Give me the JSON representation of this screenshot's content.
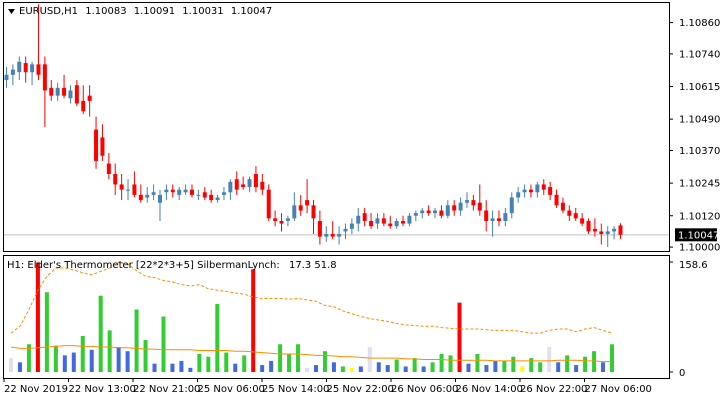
{
  "main_chart": {
    "header": {
      "symbol": "EURUSD,H1",
      "open": "1.10083",
      "high": "1.10091",
      "low": "1.10031",
      "close": "1.10047"
    },
    "price_axis": [
      "1.10860",
      "1.10740",
      "1.10615",
      "1.10490",
      "1.10370",
      "1.10245",
      "1.10120",
      "1.10000"
    ],
    "current_price": "1.10047",
    "colors": {
      "bull": "#4682b4",
      "bear": "#ff0000",
      "price_line": "#c0c0c0",
      "price_tag_bg": "#000000",
      "price_tag_text": "#ffffff"
    }
  },
  "indicator": {
    "label": "H1: Elder's Thermometer [22*2*3+5] SilbermanLynch:",
    "values": "17.3 51.8",
    "axis_top": "158.6",
    "axis_bottom": "0",
    "colors": {
      "green": "#32cd32",
      "blue": "#4169e1",
      "red": "#ff0000",
      "yellow": "#ffff00",
      "lavender": "#e0e0f0",
      "ma_line": "#ff8c00"
    }
  },
  "time_axis": [
    "22 Nov 2019",
    "22 Nov 13:00",
    "22 Nov 21:00",
    "25 Nov 06:00",
    "25 Nov 14:00",
    "25 Nov 22:00",
    "26 Nov 06:00",
    "26 Nov 14:00",
    "26 Nov 22:00",
    "27 Nov 06:00"
  ],
  "chart_data": {
    "type": "candlestick",
    "candles": [
      {
        "o": 1.1064,
        "h": 1.1069,
        "l": 1.1061,
        "c": 1.1066
      },
      {
        "o": 1.1066,
        "h": 1.107,
        "l": 1.1062,
        "c": 1.1068
      },
      {
        "o": 1.1067,
        "h": 1.1073,
        "l": 1.1064,
        "c": 1.1071
      },
      {
        "o": 1.10705,
        "h": 1.1073,
        "l": 1.1063,
        "c": 1.1067
      },
      {
        "o": 1.1067,
        "h": 1.1071,
        "l": 1.1062,
        "c": 1.107
      },
      {
        "o": 1.107,
        "h": 1.1093,
        "l": 1.1064,
        "c": 1.1066
      },
      {
        "o": 1.107,
        "h": 1.1073,
        "l": 1.1046,
        "c": 1.106
      },
      {
        "o": 1.1061,
        "h": 1.1064,
        "l": 1.1056,
        "c": 1.1058
      },
      {
        "o": 1.1058,
        "h": 1.1063,
        "l": 1.1056,
        "c": 1.1061
      },
      {
        "o": 1.1061,
        "h": 1.1066,
        "l": 1.1057,
        "c": 1.1058
      },
      {
        "o": 1.1057,
        "h": 1.1062,
        "l": 1.1055,
        "c": 1.106
      },
      {
        "o": 1.1062,
        "h": 1.1064,
        "l": 1.1054,
        "c": 1.1055
      },
      {
        "o": 1.1056,
        "h": 1.1062,
        "l": 1.1051,
        "c": 1.1052
      },
      {
        "o": 1.1058,
        "h": 1.1062,
        "l": 1.105,
        "c": 1.1056
      },
      {
        "o": 1.1045,
        "h": 1.105,
        "l": 1.103,
        "c": 1.1033
      },
      {
        "o": 1.1042,
        "h": 1.1047,
        "l": 1.1033,
        "c": 1.1035
      },
      {
        "o": 1.1032,
        "h": 1.1036,
        "l": 1.1026,
        "c": 1.1028
      },
      {
        "o": 1.1028,
        "h": 1.1032,
        "l": 1.102,
        "c": 1.1024
      },
      {
        "o": 1.1024,
        "h": 1.1028,
        "l": 1.1018,
        "c": 1.1022
      },
      {
        "o": 1.1022,
        "h": 1.1026,
        "l": 1.1018,
        "c": 1.1022
      },
      {
        "o": 1.1024,
        "h": 1.1029,
        "l": 1.1019,
        "c": 1.102
      },
      {
        "o": 1.102,
        "h": 1.1024,
        "l": 1.1017,
        "c": 1.1018
      },
      {
        "o": 1.1019,
        "h": 1.1023,
        "l": 1.1017,
        "c": 1.102
      },
      {
        "o": 1.102,
        "h": 1.1024,
        "l": 1.1018,
        "c": 1.1021
      },
      {
        "o": 1.1017,
        "h": 1.1022,
        "l": 1.101,
        "c": 1.102
      },
      {
        "o": 1.1021,
        "h": 1.1024,
        "l": 1.1018,
        "c": 1.1022
      },
      {
        "o": 1.1022,
        "h": 1.1024,
        "l": 1.1019,
        "c": 1.1021
      },
      {
        "o": 1.102,
        "h": 1.1023,
        "l": 1.1018,
        "c": 1.1022
      },
      {
        "o": 1.1021,
        "h": 1.1024,
        "l": 1.102,
        "c": 1.1022
      },
      {
        "o": 1.1022,
        "h": 1.1024,
        "l": 1.1019,
        "c": 1.102
      },
      {
        "o": 1.102,
        "h": 1.1022,
        "l": 1.1018,
        "c": 1.102
      },
      {
        "o": 1.1021,
        "h": 1.1023,
        "l": 1.1018,
        "c": 1.1019
      },
      {
        "o": 1.102,
        "h": 1.1022,
        "l": 1.1017,
        "c": 1.1018
      },
      {
        "o": 1.1018,
        "h": 1.102,
        "l": 1.1017,
        "c": 1.1019
      },
      {
        "o": 1.102,
        "h": 1.1023,
        "l": 1.1018,
        "c": 1.1021
      },
      {
        "o": 1.1021,
        "h": 1.1026,
        "l": 1.1018,
        "c": 1.1025
      },
      {
        "o": 1.1026,
        "h": 1.1029,
        "l": 1.102,
        "c": 1.1022
      },
      {
        "o": 1.1024,
        "h": 1.1027,
        "l": 1.1022,
        "c": 1.1023
      },
      {
        "o": 1.1023,
        "h": 1.1027,
        "l": 1.1021,
        "c": 1.1026
      },
      {
        "o": 1.1028,
        "h": 1.1031,
        "l": 1.1021,
        "c": 1.1023
      },
      {
        "o": 1.1025,
        "h": 1.1028,
        "l": 1.102,
        "c": 1.1022
      },
      {
        "o": 1.1022,
        "h": 1.1024,
        "l": 1.101,
        "c": 1.1011
      },
      {
        "o": 1.1011,
        "h": 1.1014,
        "l": 1.1008,
        "c": 1.101
      },
      {
        "o": 1.101,
        "h": 1.1013,
        "l": 1.1006,
        "c": 1.1009
      },
      {
        "o": 1.101,
        "h": 1.1012,
        "l": 1.1008,
        "c": 1.1011
      },
      {
        "o": 1.1011,
        "h": 1.1021,
        "l": 1.101,
        "c": 1.1016
      },
      {
        "o": 1.1016,
        "h": 1.102,
        "l": 1.1012,
        "c": 1.1014
      },
      {
        "o": 1.1018,
        "h": 1.1026,
        "l": 1.1013,
        "c": 1.1016
      },
      {
        "o": 1.1016,
        "h": 1.1018,
        "l": 1.1005,
        "c": 1.1011
      },
      {
        "o": 1.101,
        "h": 1.1014,
        "l": 1.1001,
        "c": 1.1004
      },
      {
        "o": 1.1004,
        "h": 1.1008,
        "l": 1.1002,
        "c": 1.1005
      },
      {
        "o": 1.1005,
        "h": 1.101,
        "l": 1.1003,
        "c": 1.1004
      },
      {
        "o": 1.1004,
        "h": 1.1008,
        "l": 1.1001,
        "c": 1.1005
      },
      {
        "o": 1.1006,
        "h": 1.1009,
        "l": 1.1003,
        "c": 1.1007
      },
      {
        "o": 1.1007,
        "h": 1.1011,
        "l": 1.1005,
        "c": 1.1009
      },
      {
        "o": 1.1009,
        "h": 1.1015,
        "l": 1.1006,
        "c": 1.1012
      },
      {
        "o": 1.1013,
        "h": 1.1015,
        "l": 1.1008,
        "c": 1.101
      },
      {
        "o": 1.101,
        "h": 1.1013,
        "l": 1.1007,
        "c": 1.1008
      },
      {
        "o": 1.1009,
        "h": 1.1013,
        "l": 1.1007,
        "c": 1.1011
      },
      {
        "o": 1.1011,
        "h": 1.1013,
        "l": 1.1008,
        "c": 1.1009
      },
      {
        "o": 1.1009,
        "h": 1.1012,
        "l": 1.1007,
        "c": 1.1008
      },
      {
        "o": 1.1008,
        "h": 1.1011,
        "l": 1.1007,
        "c": 1.101
      },
      {
        "o": 1.101,
        "h": 1.1012,
        "l": 1.1008,
        "c": 1.1009
      },
      {
        "o": 1.1009,
        "h": 1.1013,
        "l": 1.1008,
        "c": 1.1012
      },
      {
        "o": 1.1012,
        "h": 1.1014,
        "l": 1.101,
        "c": 1.1013
      },
      {
        "o": 1.1013,
        "h": 1.1015,
        "l": 1.1011,
        "c": 1.1014
      },
      {
        "o": 1.1014,
        "h": 1.1016,
        "l": 1.1012,
        "c": 1.1013
      },
      {
        "o": 1.1013,
        "h": 1.1015,
        "l": 1.1011,
        "c": 1.1014
      },
      {
        "o": 1.1014,
        "h": 1.1016,
        "l": 1.1011,
        "c": 1.1012
      },
      {
        "o": 1.1012,
        "h": 1.1018,
        "l": 1.1011,
        "c": 1.1016
      },
      {
        "o": 1.1016,
        "h": 1.1018,
        "l": 1.1012,
        "c": 1.1014
      },
      {
        "o": 1.1014,
        "h": 1.1019,
        "l": 1.1012,
        "c": 1.1017
      },
      {
        "o": 1.1017,
        "h": 1.1021,
        "l": 1.1015,
        "c": 1.1018
      },
      {
        "o": 1.1018,
        "h": 1.102,
        "l": 1.1014,
        "c": 1.1016
      },
      {
        "o": 1.1017,
        "h": 1.1024,
        "l": 1.1012,
        "c": 1.1014
      },
      {
        "o": 1.1014,
        "h": 1.1018,
        "l": 1.1006,
        "c": 1.101
      },
      {
        "o": 1.101,
        "h": 1.1014,
        "l": 1.1004,
        "c": 1.1011
      },
      {
        "o": 1.1011,
        "h": 1.1014,
        "l": 1.1008,
        "c": 1.101
      },
      {
        "o": 1.101,
        "h": 1.1015,
        "l": 1.1008,
        "c": 1.1013
      },
      {
        "o": 1.1013,
        "h": 1.1021,
        "l": 1.1011,
        "c": 1.1019
      },
      {
        "o": 1.1019,
        "h": 1.1023,
        "l": 1.1017,
        "c": 1.1021
      },
      {
        "o": 1.1021,
        "h": 1.1024,
        "l": 1.1019,
        "c": 1.1022
      },
      {
        "o": 1.1022,
        "h": 1.1024,
        "l": 1.1019,
        "c": 1.1021
      },
      {
        "o": 1.1021,
        "h": 1.1025,
        "l": 1.1019,
        "c": 1.1024
      },
      {
        "o": 1.1024,
        "h": 1.1026,
        "l": 1.102,
        "c": 1.1022
      },
      {
        "o": 1.1023,
        "h": 1.1025,
        "l": 1.1018,
        "c": 1.102
      },
      {
        "o": 1.102,
        "h": 1.1022,
        "l": 1.1015,
        "c": 1.1016
      },
      {
        "o": 1.1017,
        "h": 1.1019,
        "l": 1.1013,
        "c": 1.1014
      },
      {
        "o": 1.1014,
        "h": 1.1016,
        "l": 1.101,
        "c": 1.1012
      },
      {
        "o": 1.1013,
        "h": 1.1015,
        "l": 1.101,
        "c": 1.1011
      },
      {
        "o": 1.1011,
        "h": 1.1013,
        "l": 1.1008,
        "c": 1.1009
      },
      {
        "o": 1.101,
        "h": 1.1011,
        "l": 1.1005,
        "c": 1.1006
      },
      {
        "o": 1.1007,
        "h": 1.1011,
        "l": 1.1004,
        "c": 1.1006
      },
      {
        "o": 1.1006,
        "h": 1.1009,
        "l": 1.1001,
        "c": 1.1005
      },
      {
        "o": 1.1005,
        "h": 1.1008,
        "l": 1.1,
        "c": 1.1006
      },
      {
        "o": 1.1006,
        "h": 1.1008,
        "l": 1.1003,
        "c": 1.1007
      },
      {
        "o": 1.10083,
        "h": 1.10091,
        "l": 1.10031,
        "c": 1.10047
      }
    ],
    "histogram": [
      {
        "v": 20,
        "c": "lavender"
      },
      {
        "v": 14,
        "c": "blue"
      },
      {
        "v": 40,
        "c": "green"
      },
      {
        "v": 158,
        "c": "red"
      },
      {
        "v": 115,
        "c": "green"
      },
      {
        "v": 38,
        "c": "green"
      },
      {
        "v": 24,
        "c": "blue"
      },
      {
        "v": 28,
        "c": "blue"
      },
      {
        "v": 52,
        "c": "green"
      },
      {
        "v": 32,
        "c": "blue"
      },
      {
        "v": 110,
        "c": "green"
      },
      {
        "v": 60,
        "c": "green"
      },
      {
        "v": 36,
        "c": "blue"
      },
      {
        "v": 30,
        "c": "blue"
      },
      {
        "v": 90,
        "c": "green"
      },
      {
        "v": 46,
        "c": "green"
      },
      {
        "v": 12,
        "c": "blue"
      },
      {
        "v": 80,
        "c": "green"
      },
      {
        "v": 12,
        "c": "blue"
      },
      {
        "v": 16,
        "c": "blue"
      },
      {
        "v": 6,
        "c": "blue"
      },
      {
        "v": 26,
        "c": "green"
      },
      {
        "v": 22,
        "c": "green"
      },
      {
        "v": 98,
        "c": "green"
      },
      {
        "v": 28,
        "c": "green"
      },
      {
        "v": 12,
        "c": "blue"
      },
      {
        "v": 24,
        "c": "green"
      },
      {
        "v": 148,
        "c": "red"
      },
      {
        "v": 10,
        "c": "blue"
      },
      {
        "v": 16,
        "c": "blue"
      },
      {
        "v": 40,
        "c": "green"
      },
      {
        "v": 26,
        "c": "green"
      },
      {
        "v": 40,
        "c": "green"
      },
      {
        "v": 6,
        "c": "lavender"
      },
      {
        "v": 10,
        "c": "blue"
      },
      {
        "v": 30,
        "c": "green"
      },
      {
        "v": 14,
        "c": "blue"
      },
      {
        "v": 8,
        "c": "green"
      },
      {
        "v": 6,
        "c": "yellow"
      },
      {
        "v": 8,
        "c": "blue"
      },
      {
        "v": 36,
        "c": "lavender"
      },
      {
        "v": 14,
        "c": "blue"
      },
      {
        "v": 10,
        "c": "blue"
      },
      {
        "v": 18,
        "c": "green"
      },
      {
        "v": 8,
        "c": "blue"
      },
      {
        "v": 20,
        "c": "green"
      },
      {
        "v": 8,
        "c": "blue"
      },
      {
        "v": 14,
        "c": "green"
      },
      {
        "v": 26,
        "c": "green"
      },
      {
        "v": 24,
        "c": "green"
      },
      {
        "v": 100,
        "c": "red"
      },
      {
        "v": 12,
        "c": "blue"
      },
      {
        "v": 26,
        "c": "green"
      },
      {
        "v": 10,
        "c": "blue"
      },
      {
        "v": 16,
        "c": "blue"
      },
      {
        "v": 16,
        "c": "green"
      },
      {
        "v": 22,
        "c": "green"
      },
      {
        "v": 8,
        "c": "yellow"
      },
      {
        "v": 20,
        "c": "green"
      },
      {
        "v": 14,
        "c": "green"
      },
      {
        "v": 36,
        "c": "lavender"
      },
      {
        "v": 14,
        "c": "blue"
      },
      {
        "v": 24,
        "c": "green"
      },
      {
        "v": 10,
        "c": "blue"
      },
      {
        "v": 22,
        "c": "green"
      },
      {
        "v": 30,
        "c": "green"
      },
      {
        "v": 14,
        "c": "blue"
      },
      {
        "v": 40,
        "c": "green"
      }
    ],
    "ma_line": [
      36,
      34,
      34,
      35,
      36,
      37,
      38,
      38,
      37,
      37,
      36,
      36,
      35,
      35,
      34,
      33,
      33,
      32,
      32,
      32,
      32,
      31,
      31,
      31,
      31,
      30,
      30,
      29,
      28,
      27,
      26,
      26,
      26,
      25,
      24,
      24,
      23,
      22,
      22,
      21,
      20,
      20,
      20,
      20,
      19,
      19,
      18,
      18,
      18,
      17,
      17,
      17,
      17,
      17,
      16,
      16,
      16,
      16,
      16,
      16,
      16,
      17,
      17,
      17,
      16,
      16,
      15,
      15
    ],
    "envelope": [
      56,
      66,
      90,
      118,
      138,
      150,
      150,
      147,
      143,
      140,
      145,
      150,
      158,
      156,
      146,
      138,
      136,
      132,
      130,
      126,
      124,
      126,
      120,
      118,
      116,
      114,
      112,
      108,
      106,
      106,
      106,
      105,
      106,
      104,
      102,
      96,
      94,
      88,
      84,
      80,
      77,
      75,
      73,
      70,
      68,
      67,
      66,
      66,
      64,
      63,
      62,
      62,
      62,
      61,
      60,
      60,
      60,
      58,
      56,
      56,
      60,
      62,
      62,
      58,
      62,
      64,
      60,
      56
    ],
    "price_ylim": [
      1.09985,
      1.10935
    ],
    "indicator_ylim": [
      0,
      158.6
    ]
  }
}
